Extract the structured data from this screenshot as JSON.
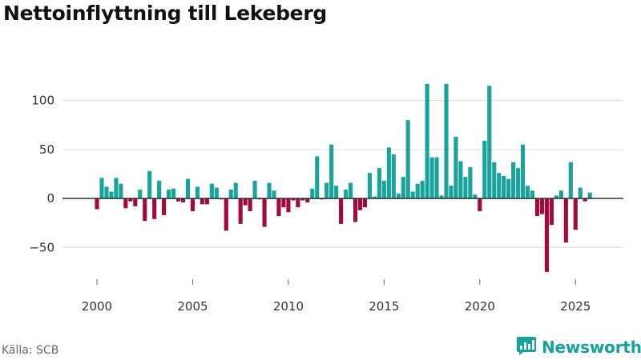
{
  "chart_data": {
    "type": "bar",
    "title": "Nettoinflyttning till Lekeberg",
    "xlabel": "",
    "ylabel": "",
    "ylim": [
      -80,
      125
    ],
    "xlim": [
      1998.2,
      2027.5
    ],
    "y_ticks": [
      100,
      50,
      0,
      -50
    ],
    "y_tick_labels": [
      "100",
      "50",
      "0",
      "−50"
    ],
    "x_ticks": [
      2000,
      2005,
      2010,
      2015,
      2020,
      2025
    ],
    "x_tick_labels": [
      "2000",
      "2005",
      "2010",
      "2015",
      "2020",
      "2025"
    ],
    "grid": true,
    "frequency": "monthly (every other month)",
    "start": 2000.0,
    "step": 0.25,
    "values": [
      -11,
      21,
      12,
      7,
      21,
      15,
      -10,
      -3,
      -8,
      9,
      -23,
      28,
      -21,
      18,
      -17,
      9,
      10,
      -3,
      -4,
      20,
      -13,
      12,
      -6,
      -6,
      15,
      11,
      -1,
      -33,
      9,
      16,
      -26,
      -7,
      -13,
      18,
      -1,
      -29,
      16,
      8,
      -18,
      -9,
      -14,
      -2,
      -9,
      -2,
      -4,
      10,
      43,
      -1,
      16,
      55,
      13,
      -26,
      9,
      16,
      -24,
      -12,
      -9,
      26,
      2,
      31,
      18,
      52,
      45,
      5,
      22,
      80,
      7,
      15,
      18,
      117,
      42,
      42,
      3,
      117,
      13,
      63,
      38,
      22,
      32,
      4,
      -13,
      59,
      115,
      37,
      26,
      23,
      20,
      37,
      31,
      55,
      13,
      8,
      -18,
      -16,
      -75,
      -27,
      3,
      8,
      -45,
      37,
      -32,
      11,
      -3,
      6
    ],
    "colors": {
      "positive": "#1aa39b",
      "negative": "#a3093d"
    }
  },
  "footer": {
    "source": "Källa: SCB",
    "brand_name": "Newsworthy"
  }
}
